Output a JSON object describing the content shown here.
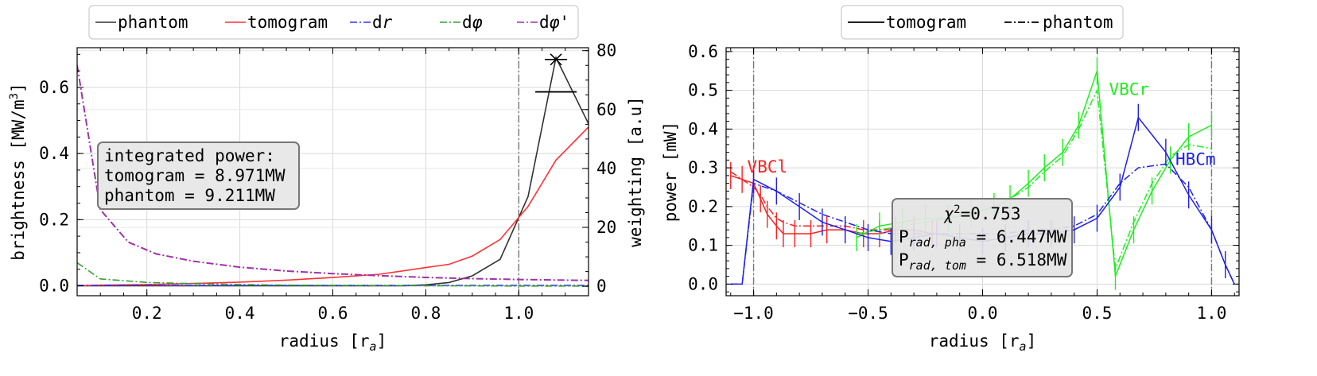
{
  "chart_data": [
    {
      "type": "line",
      "xlabel": "radius [r",
      "xlabel_sub": "a",
      "xlabel_end": "]",
      "ylabel": "brightness [MW/m",
      "ylabel_sup": "3",
      "ylabel_end": "]",
      "y2label": "weighting [a.u]",
      "xlim": [
        0.05,
        1.15
      ],
      "ylim": [
        -0.03,
        0.72
      ],
      "y2lim": [
        -3.2,
        81
      ],
      "xticks": [
        "0.2",
        "0.4",
        "0.6",
        "0.8",
        "1.0"
      ],
      "yticks": [
        "0.0",
        "0.2",
        "0.4",
        "0.6"
      ],
      "y2ticks": [
        "0",
        "20",
        "40",
        "60",
        "80"
      ],
      "grid": true,
      "legend_position": "top, above plot",
      "legend": [
        {
          "label": "phantom",
          "color": "#333333",
          "dash": "solid"
        },
        {
          "label": "tomogram",
          "color": "#ff3333",
          "dash": "solid"
        },
        {
          "label": "dr",
          "color": "#3333ff",
          "dash": "dashdot"
        },
        {
          "label": "dφ",
          "color": "#33a033",
          "dash": "dashdot"
        },
        {
          "label": "dφ'",
          "color": "#9e33a8",
          "dash": "dashdot"
        }
      ],
      "annotation": {
        "lines": [
          "integrated power:",
          "tomogram = 8.971MW",
          "phantom = 9.211MW"
        ]
      },
      "separatrix_x": 1.0,
      "series": [
        {
          "name": "phantom",
          "color": "#333333",
          "axis": "left",
          "x": [
            0.05,
            0.1,
            0.2,
            0.3,
            0.4,
            0.5,
            0.6,
            0.7,
            0.75,
            0.8,
            0.85,
            0.9,
            0.96,
            1.02,
            1.08,
            1.15
          ],
          "y": [
            0.0,
            0.0,
            0.0,
            0.0,
            0.0,
            0.0,
            0.0,
            0.0,
            0.0,
            0.003,
            0.01,
            0.03,
            0.08,
            0.27,
            0.69,
            0.49
          ]
        },
        {
          "name": "tomogram",
          "color": "#ff3333",
          "axis": "left",
          "x": [
            0.05,
            0.1,
            0.2,
            0.3,
            0.4,
            0.5,
            0.6,
            0.7,
            0.75,
            0.8,
            0.85,
            0.9,
            0.96,
            1.02,
            1.08,
            1.15
          ],
          "y": [
            0.0,
            0.002,
            0.004,
            0.007,
            0.011,
            0.017,
            0.025,
            0.035,
            0.045,
            0.055,
            0.065,
            0.09,
            0.14,
            0.24,
            0.38,
            0.48
          ]
        },
        {
          "name": "dr",
          "color": "#3333ff",
          "axis": "right",
          "x": [
            0.05,
            0.15,
            0.3,
            0.5,
            0.7,
            0.9,
            1.15
          ],
          "y": [
            0.3,
            0.3,
            0.3,
            0.3,
            0.3,
            0.3,
            0.3
          ]
        },
        {
          "name": "dφ",
          "color": "#33a033",
          "axis": "right",
          "x": [
            0.05,
            0.1,
            0.2,
            0.3,
            0.4,
            0.5,
            0.6,
            0.7,
            0.8,
            0.9,
            1.0,
            1.15
          ],
          "y": [
            8,
            2.5,
            1.3,
            0.9,
            0.6,
            0.4,
            0.3,
            0.25,
            0.2,
            0.15,
            0.1,
            0.1
          ]
        },
        {
          "name": "dφ'",
          "color": "#9e33a8",
          "axis": "right",
          "x": [
            0.05,
            0.1,
            0.16,
            0.22,
            0.3,
            0.4,
            0.5,
            0.6,
            0.7,
            0.8,
            0.9,
            1.0,
            1.1,
            1.15
          ],
          "y": [
            75,
            26,
            15,
            11,
            8.5,
            6.5,
            5.2,
            4.3,
            3.6,
            3.0,
            2.6,
            2.3,
            2.1,
            2.0
          ]
        }
      ],
      "markers": [
        {
          "name": "weighting maximum",
          "axis": "right",
          "x": 1.08,
          "y": 77,
          "symbol": "x"
        },
        {
          "name": "weighting cap",
          "axis": "right",
          "x": 1.08,
          "y": 66,
          "symbol": "hline"
        }
      ]
    },
    {
      "type": "line",
      "xlabel": "radius [r",
      "xlabel_sub": "a",
      "xlabel_end": "]",
      "ylabel": "power [mW]",
      "xlim": [
        -1.12,
        1.12
      ],
      "ylim": [
        -0.03,
        0.61
      ],
      "xticks": [
        "−1.0",
        "−0.5",
        "0.0",
        "0.5",
        "1.0"
      ],
      "yticks": [
        "0.0",
        "0.1",
        "0.2",
        "0.3",
        "0.4",
        "0.5",
        "0.6"
      ],
      "grid": true,
      "legend_position": "top, above plot",
      "legend": [
        {
          "label": "tomogram",
          "dash": "solid"
        },
        {
          "label": "phantom",
          "dash": "dashdot"
        }
      ],
      "separatrix_x": [
        -1.0,
        1.0
      ],
      "camera_labels": [
        {
          "label": "VBCl",
          "color": "#ff2020",
          "x": -1.0,
          "y": 0.3
        },
        {
          "label": "VBCr",
          "color": "#20ee20",
          "x": 0.58,
          "y": 0.5
        },
        {
          "label": "HBCm",
          "color": "#2020ee",
          "x": 0.87,
          "y": 0.32
        }
      ],
      "annotation": {
        "chi2": "0.753",
        "p_pha": "= 6.447MW",
        "p_tom": "= 6.518MW",
        "sub_pha": "rad, pha",
        "sub_tom": "rad, tom"
      },
      "series": [
        {
          "name": "VBCl tomogram",
          "camera": "VBCl",
          "color": "#ff2020",
          "dash": "solid",
          "x": [
            -1.1,
            -1.05,
            -1.0,
            -0.97,
            -0.94,
            -0.9,
            -0.87,
            -0.82,
            -0.75,
            -0.68,
            -0.6,
            -0.52,
            -0.45,
            -0.38,
            -0.3,
            -0.22
          ],
          "y": [
            0.28,
            0.27,
            0.26,
            0.22,
            0.18,
            0.15,
            0.13,
            0.13,
            0.13,
            0.14,
            0.14,
            0.13,
            0.13,
            0.14,
            0.14,
            0.13
          ]
        },
        {
          "name": "VBCl phantom",
          "camera": "VBCl",
          "color": "#ff2020",
          "dash": "dashdot",
          "x": [
            -1.1,
            -1.05,
            -1.0,
            -0.97,
            -0.94,
            -0.9,
            -0.87,
            -0.82,
            -0.75,
            -0.68,
            -0.6,
            -0.52,
            -0.45,
            -0.38,
            -0.3,
            -0.22
          ],
          "y": [
            0.29,
            0.27,
            0.25,
            0.23,
            0.2,
            0.17,
            0.16,
            0.15,
            0.15,
            0.15,
            0.15,
            0.14,
            0.14,
            0.14,
            0.14,
            0.13
          ]
        },
        {
          "name": "VBCr tomogram",
          "camera": "VBCr",
          "color": "#20ee20",
          "dash": "solid",
          "x": [
            -0.55,
            -0.45,
            -0.35,
            -0.25,
            -0.15,
            -0.05,
            0.05,
            0.12,
            0.2,
            0.27,
            0.35,
            0.42,
            0.5,
            0.58,
            0.66,
            0.74,
            0.82,
            0.9,
            1.0
          ],
          "y": [
            0.12,
            0.15,
            0.16,
            0.17,
            0.17,
            0.18,
            0.2,
            0.22,
            0.26,
            0.3,
            0.34,
            0.41,
            0.55,
            0.02,
            0.14,
            0.24,
            0.32,
            0.38,
            0.41
          ]
        },
        {
          "name": "VBCr phantom",
          "camera": "VBCr",
          "color": "#20ee20",
          "dash": "dashdot",
          "x": [
            -0.55,
            -0.45,
            -0.35,
            -0.25,
            -0.15,
            -0.05,
            0.05,
            0.12,
            0.2,
            0.27,
            0.35,
            0.42,
            0.5,
            0.58,
            0.66,
            0.74,
            0.82,
            0.9,
            1.0
          ],
          "y": [
            0.13,
            0.14,
            0.15,
            0.16,
            0.17,
            0.18,
            0.2,
            0.22,
            0.25,
            0.29,
            0.33,
            0.4,
            0.5,
            0.04,
            0.16,
            0.26,
            0.33,
            0.36,
            0.35
          ]
        },
        {
          "name": "HBCm tomogram",
          "camera": "HBCm",
          "color": "#2020ee",
          "dash": "solid",
          "x": [
            -1.1,
            -1.05,
            -1.0,
            -0.9,
            -0.8,
            -0.7,
            -0.6,
            -0.5,
            -0.4,
            -0.3,
            -0.2,
            -0.1,
            0.0,
            0.1,
            0.2,
            0.3,
            0.4,
            0.5,
            0.6,
            0.68,
            0.8,
            0.9,
            1.0,
            1.06,
            1.1
          ],
          "y": [
            0.0,
            0.0,
            0.27,
            0.24,
            0.2,
            0.16,
            0.14,
            0.12,
            0.11,
            0.12,
            0.13,
            0.12,
            0.11,
            0.12,
            0.13,
            0.13,
            0.14,
            0.17,
            0.25,
            0.43,
            0.34,
            0.23,
            0.14,
            0.05,
            0.0
          ]
        },
        {
          "name": "HBCm phantom",
          "camera": "HBCm",
          "color": "#2020ee",
          "dash": "dashdot",
          "x": [
            -1.1,
            -1.05,
            -1.0,
            -0.9,
            -0.8,
            -0.7,
            -0.6,
            -0.5,
            -0.4,
            -0.3,
            -0.2,
            -0.1,
            0.0,
            0.1,
            0.2,
            0.3,
            0.4,
            0.5,
            0.6,
            0.68,
            0.8,
            0.9,
            1.0,
            1.06,
            1.1
          ],
          "y": [
            0.0,
            0.0,
            0.26,
            0.24,
            0.21,
            0.18,
            0.16,
            0.14,
            0.13,
            0.13,
            0.13,
            0.13,
            0.13,
            0.13,
            0.14,
            0.14,
            0.15,
            0.18,
            0.26,
            0.3,
            0.31,
            0.25,
            0.14,
            0.05,
            0.0
          ]
        }
      ]
    }
  ]
}
